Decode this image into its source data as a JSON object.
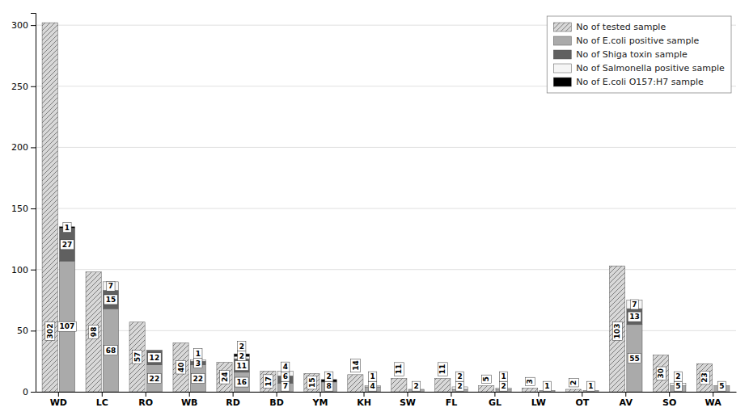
{
  "chart_data": {
    "type": "bar",
    "categories": [
      "WD",
      "LC",
      "RO",
      "WB",
      "RD",
      "BD",
      "YM",
      "KH",
      "SW",
      "FL",
      "GL",
      "LW",
      "OT",
      "AV",
      "SO",
      "WA"
    ],
    "series": [
      {
        "name": "No of tested sample",
        "color": "#d8d8d8",
        "stacked": false,
        "values": [
          302,
          98,
          57,
          40,
          24,
          17,
          15,
          14,
          11,
          11,
          5,
          3,
          2,
          103,
          30,
          23
        ]
      },
      {
        "name": "No of E.coli positive sample",
        "color": "#aaaaaa",
        "stacked": true,
        "values": [
          107,
          68,
          22,
          22,
          16,
          7,
          8,
          4,
          2,
          2,
          2,
          1,
          1,
          55,
          5,
          5
        ]
      },
      {
        "name": "No of Shiga toxin sample",
        "color": "#606060",
        "stacked": true,
        "values": [
          27,
          15,
          12,
          3,
          11,
          6,
          0,
          0,
          0,
          0,
          0,
          0,
          0,
          13,
          0,
          0
        ]
      },
      {
        "name": "No of Salmonella positive sample",
        "color": "#f5f5f5",
        "stacked": true,
        "values": [
          0,
          7,
          0,
          1,
          2,
          4,
          0,
          1,
          0,
          2,
          1,
          0,
          0,
          7,
          2,
          0
        ]
      },
      {
        "name": "No of E.coli O157:H7 sample",
        "color": "#000000",
        "stacked": true,
        "values": [
          1,
          0,
          0,
          0,
          2,
          0,
          2,
          0,
          0,
          0,
          0,
          0,
          0,
          0,
          0,
          0
        ]
      }
    ],
    "ylim": [
      0,
      310
    ],
    "yticks": [
      0,
      50,
      100,
      150,
      200,
      250,
      300
    ],
    "grid": true,
    "legend": "upper right",
    "data_labels": true
  }
}
